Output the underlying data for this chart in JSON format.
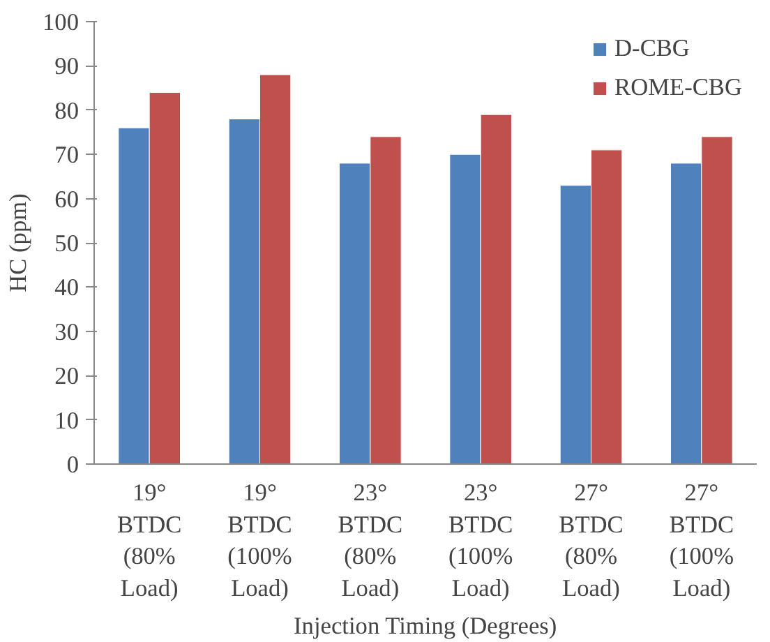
{
  "chart_data": {
    "type": "bar",
    "xlabel": "Injection Timing (Degrees)",
    "ylabel": "HC (ppm)",
    "categories": [
      "19°\nBTDC\n(80%\nLoad)",
      "19°\nBTDC\n(100%\nLoad)",
      "23°\nBTDC\n(80%\nLoad)",
      "23°\nBTDC\n(100%\nLoad)",
      "27°\nBTDC\n(80%\nLoad)",
      "27°\nBTDC\n(100%\nLoad)"
    ],
    "series": [
      {
        "name": "D-CBG",
        "color": "#4f81bd",
        "values": [
          76,
          78,
          68,
          70,
          63,
          68
        ]
      },
      {
        "name": "ROME-CBG",
        "color": "#c0504d",
        "values": [
          84,
          88,
          74,
          79,
          71,
          74
        ]
      }
    ],
    "ylim": [
      0,
      100
    ],
    "yticks": [
      0,
      10,
      20,
      30,
      40,
      50,
      60,
      70,
      80,
      90,
      100
    ],
    "grid": false,
    "legend": "top right"
  }
}
